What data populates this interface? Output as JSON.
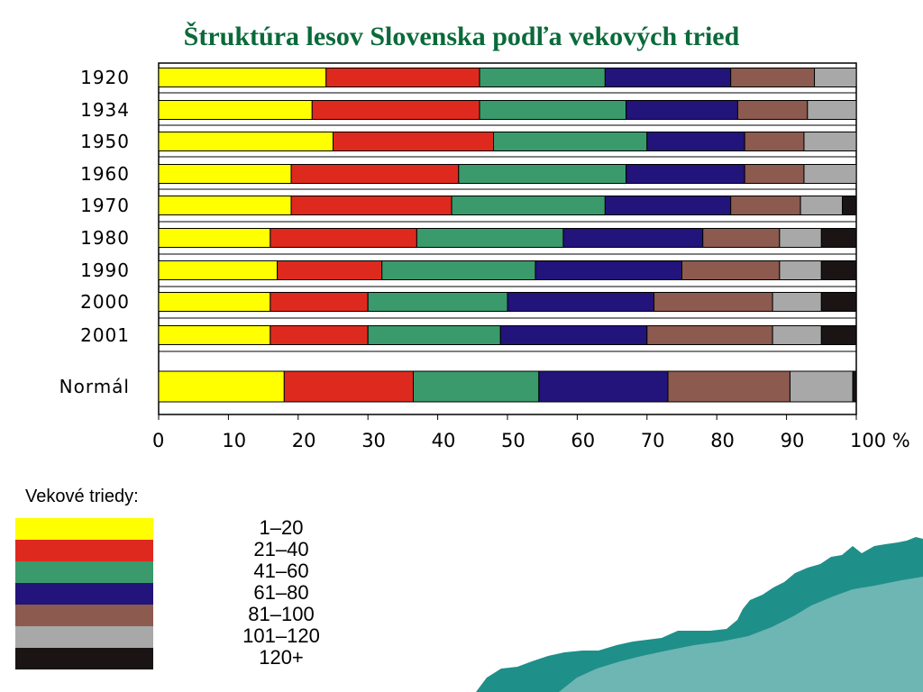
{
  "slide": {
    "title": "Štruktúra lesov Slovenska podľa vekových tried",
    "legend_title": "Vekové triedy:"
  },
  "colors": {
    "title": "#0a6a3a",
    "sea": "#1f8f8a"
  },
  "chart_data": {
    "type": "bar",
    "orientation": "horizontal",
    "stacked": true,
    "title": "Štruktúra lesov Slovenska podľa vekových tried",
    "categories": [
      "1920",
      "1934",
      "1950",
      "1960",
      "1970",
      "1980",
      "1990",
      "2000",
      "2001",
      "Normál"
    ],
    "xlim": [
      0,
      100
    ],
    "x_ticks": [
      "0",
      "10",
      "20",
      "30",
      "40",
      "50",
      "60",
      "70",
      "80",
      "90",
      "100 %"
    ],
    "grid": true,
    "legend_position": "bottom-left",
    "series": [
      {
        "name": "1–20",
        "color": "#ffff00",
        "values": [
          24,
          22,
          25,
          19,
          19,
          16,
          17,
          16,
          16,
          18
        ]
      },
      {
        "name": "21–40",
        "color": "#de2a1e",
        "values": [
          22,
          24,
          23,
          24,
          23,
          21,
          15,
          14,
          14,
          18.5
        ]
      },
      {
        "name": "41–60",
        "color": "#3a9a6c",
        "values": [
          18,
          21,
          22,
          24,
          22,
          21,
          22,
          20,
          19,
          18
        ]
      },
      {
        "name": "61–80",
        "color": "#22147a",
        "values": [
          18,
          16,
          14,
          17,
          18,
          20,
          21,
          21,
          21,
          18.5
        ]
      },
      {
        "name": "81–100",
        "color": "#8c5a4e",
        "values": [
          12,
          10,
          8.5,
          8.5,
          10,
          11,
          14,
          17,
          18,
          17.5
        ]
      },
      {
        "name": "101–120",
        "color": "#a8a8a8",
        "values": [
          6,
          7,
          7.5,
          7.5,
          6,
          6,
          6,
          7,
          7,
          9
        ]
      },
      {
        "name": "120+",
        "color": "#1a1414",
        "values": [
          0,
          0,
          0,
          0,
          2,
          5,
          5,
          5,
          5,
          0.5
        ]
      }
    ]
  }
}
